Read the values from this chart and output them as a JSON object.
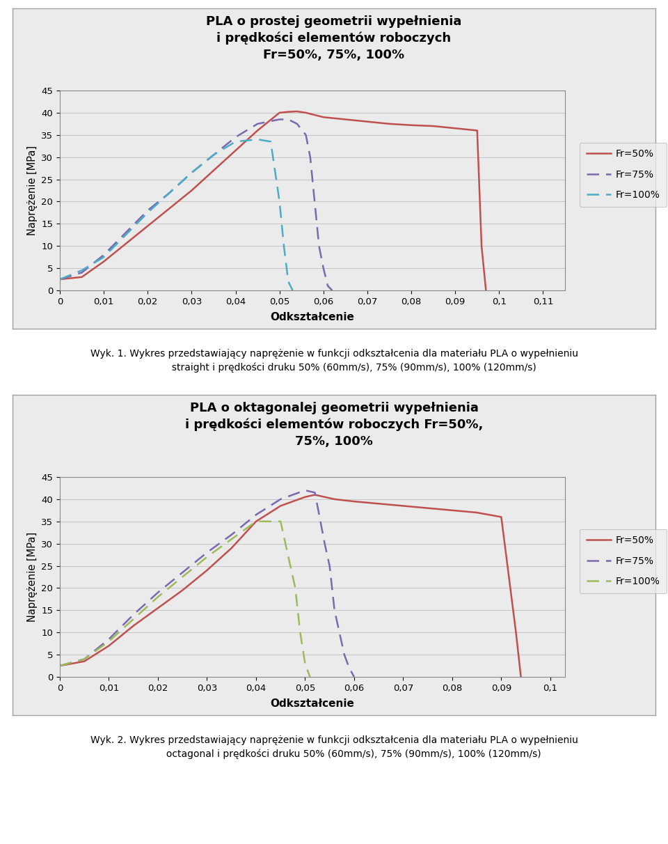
{
  "chart1": {
    "title_line1": "PLA o prostej geometrii wypełnienia",
    "title_line2": "i prędkości elementów roboczych",
    "title_line3": "Fr=50%, 75%, 100%",
    "xlabel": "Odkształcenie",
    "ylabel": "Naprężenie [MPa]",
    "xlim": [
      0,
      0.115
    ],
    "ylim": [
      0,
      45
    ],
    "xticks": [
      0,
      0.01,
      0.02,
      0.03,
      0.04,
      0.05,
      0.06,
      0.07,
      0.08,
      0.09,
      0.1,
      0.11
    ],
    "xtick_labels": [
      "0",
      "0,01",
      "0,02",
      "0,03",
      "0,04",
      "0,05",
      "0,06",
      "0,07",
      "0,08",
      "0,09",
      "0,1",
      "0,11"
    ],
    "yticks": [
      0,
      5,
      10,
      15,
      20,
      25,
      30,
      35,
      40,
      45
    ],
    "series": [
      {
        "label": "Fr=50%",
        "color": "#C0504D",
        "linestyle": "solid",
        "linewidth": 1.8,
        "x": [
          0,
          0.005,
          0.01,
          0.015,
          0.02,
          0.025,
          0.03,
          0.035,
          0.04,
          0.045,
          0.05,
          0.052,
          0.054,
          0.056,
          0.058,
          0.06,
          0.065,
          0.07,
          0.075,
          0.08,
          0.085,
          0.09,
          0.095,
          0.096,
          0.097
        ],
        "y": [
          2.5,
          3.0,
          6.5,
          10.5,
          14.5,
          18.5,
          22.5,
          27.0,
          31.5,
          36.0,
          40.0,
          40.2,
          40.3,
          40.0,
          39.5,
          39.0,
          38.5,
          38.0,
          37.5,
          37.2,
          37.0,
          36.5,
          36.0,
          10.0,
          0.0
        ]
      },
      {
        "label": "Fr=75%",
        "color": "#7B68AE",
        "linestyle": "dashed",
        "linewidth": 1.8,
        "x": [
          0,
          0.005,
          0.01,
          0.015,
          0.02,
          0.025,
          0.03,
          0.035,
          0.04,
          0.045,
          0.05,
          0.052,
          0.054,
          0.056,
          0.057,
          0.058,
          0.059,
          0.06,
          0.061,
          0.062
        ],
        "y": [
          2.5,
          4.0,
          8.0,
          13.0,
          18.0,
          22.0,
          26.5,
          30.5,
          34.5,
          37.5,
          38.5,
          38.5,
          37.5,
          35.0,
          30.0,
          20.0,
          10.0,
          5.0,
          1.0,
          0.0
        ]
      },
      {
        "label": "Fr=100%",
        "color": "#4BACC6",
        "linestyle": "dashed",
        "linewidth": 1.8,
        "x": [
          0,
          0.005,
          0.01,
          0.015,
          0.02,
          0.025,
          0.03,
          0.035,
          0.04,
          0.045,
          0.048,
          0.05,
          0.051,
          0.052,
          0.053
        ],
        "y": [
          2.5,
          4.5,
          7.5,
          12.5,
          17.5,
          22.0,
          26.5,
          30.5,
          33.5,
          34.0,
          33.5,
          20.0,
          10.0,
          2.0,
          0.0
        ]
      }
    ]
  },
  "chart2": {
    "title_line1": "PLA o oktagonalej geometrii wypełnienia",
    "title_line2": "i prędkości elementów roboczych Fr=50%,",
    "title_line3": "75%, 100%",
    "xlabel": "Odkształcenie",
    "ylabel": "Naprężenie [MPa]",
    "xlim": [
      0,
      0.103
    ],
    "ylim": [
      0,
      45
    ],
    "xticks": [
      0,
      0.01,
      0.02,
      0.03,
      0.04,
      0.05,
      0.06,
      0.07,
      0.08,
      0.09,
      0.1
    ],
    "xtick_labels": [
      "0",
      "0,01",
      "0,02",
      "0,03",
      "0,04",
      "0,05",
      "0,06",
      "0,07",
      "0,08",
      "0,09",
      "0,1"
    ],
    "yticks": [
      0,
      5,
      10,
      15,
      20,
      25,
      30,
      35,
      40,
      45
    ],
    "series": [
      {
        "label": "Fr=50%",
        "color": "#C0504D",
        "linestyle": "solid",
        "linewidth": 1.8,
        "x": [
          0,
          0.005,
          0.01,
          0.015,
          0.02,
          0.025,
          0.03,
          0.035,
          0.04,
          0.045,
          0.05,
          0.052,
          0.054,
          0.056,
          0.06,
          0.065,
          0.07,
          0.075,
          0.08,
          0.085,
          0.09,
          0.093,
          0.094
        ],
        "y": [
          2.5,
          3.5,
          7.0,
          11.5,
          15.5,
          19.5,
          24.0,
          29.0,
          35.0,
          38.5,
          40.5,
          41.0,
          40.5,
          40.0,
          39.5,
          39.0,
          38.5,
          38.0,
          37.5,
          37.0,
          36.0,
          10.0,
          0.0
        ]
      },
      {
        "label": "Fr=75%",
        "color": "#7B68AE",
        "linestyle": "dashed",
        "linewidth": 1.8,
        "x": [
          0,
          0.005,
          0.01,
          0.015,
          0.02,
          0.025,
          0.03,
          0.035,
          0.04,
          0.045,
          0.05,
          0.052,
          0.054,
          0.055,
          0.056,
          0.057,
          0.058,
          0.059,
          0.06
        ],
        "y": [
          2.5,
          4.0,
          8.5,
          14.0,
          19.0,
          23.5,
          28.0,
          32.0,
          36.5,
          40.0,
          42.0,
          41.5,
          30.0,
          25.0,
          15.0,
          10.0,
          5.0,
          2.0,
          0.0
        ]
      },
      {
        "label": "Fr=100%",
        "color": "#9BBB59",
        "linestyle": "dashed",
        "linewidth": 1.8,
        "x": [
          0,
          0.005,
          0.01,
          0.015,
          0.02,
          0.025,
          0.03,
          0.035,
          0.04,
          0.045,
          0.048,
          0.049,
          0.05,
          0.051
        ],
        "y": [
          2.5,
          4.0,
          8.0,
          13.0,
          18.0,
          22.5,
          27.0,
          31.0,
          35.0,
          35.0,
          20.0,
          10.0,
          3.0,
          0.0
        ]
      }
    ]
  },
  "caption1_prefix": "Wyk. 1. ",
  "caption1_main": "Wykres przedstawiający naprężenie w funkcji odkształcenia dla materiału PLA o wypełnieniu",
  "caption1_line2": "straight i prędkości druku 50% (60mm/s), 75% (90mm/s), 100% (120mm/s)",
  "caption2_prefix": "Wyk. 2. ",
  "caption2_main": "Wykres przedstawiający naprężenie w funkcji odkształcenia dla materiału PLA o wypełnieniu",
  "caption2_line2": "octagonal i prędkości druku 50% (60mm/s), 75% (90mm/s), 100% (120mm/s)",
  "background_color": "#FFFFFF",
  "panel_bg": "#EBEBEB",
  "grid_color": "#BEBEBE",
  "border_color": "#A0A0A0"
}
